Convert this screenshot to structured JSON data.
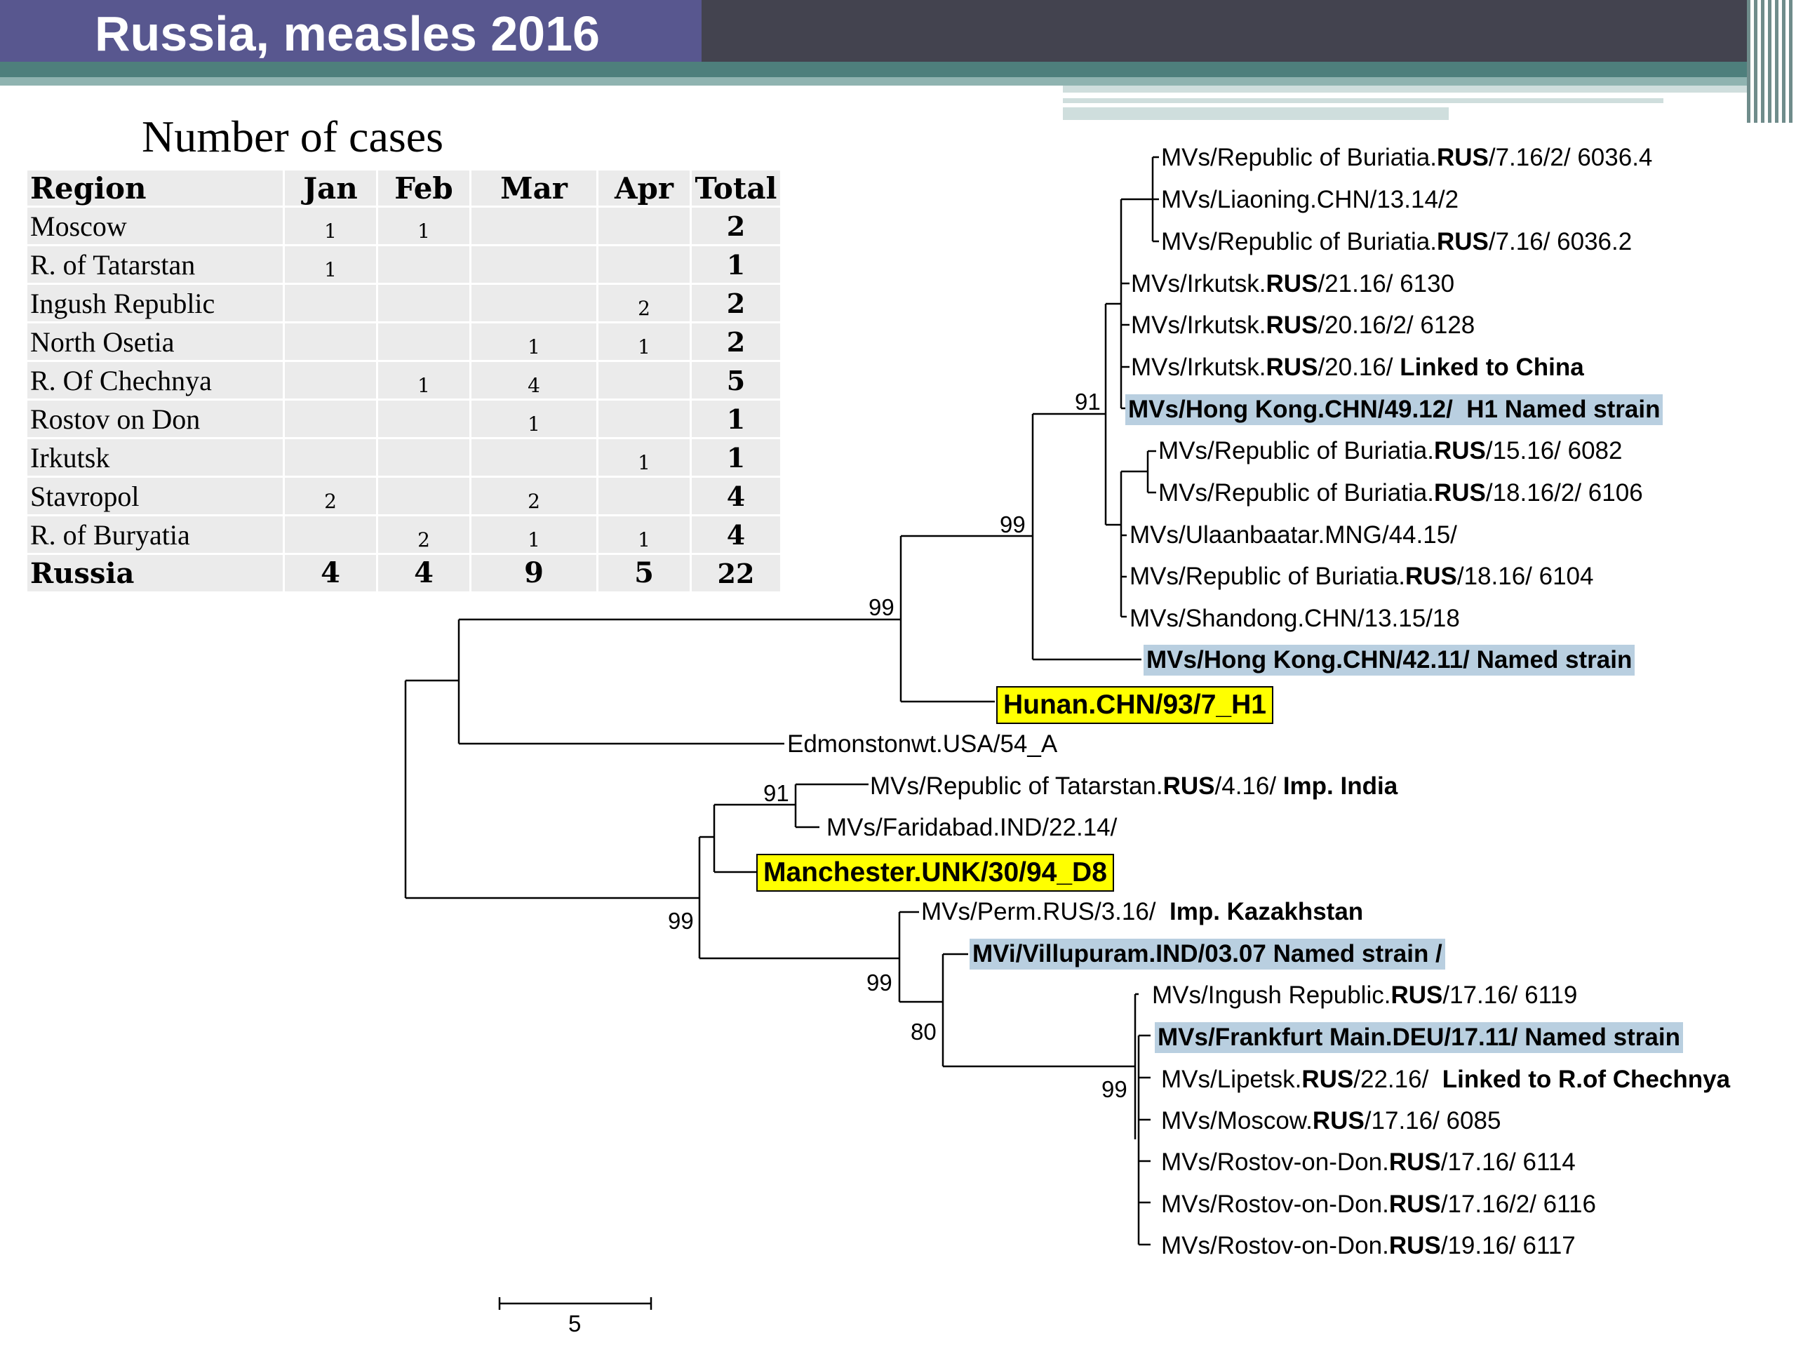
{
  "header": {
    "title": "Russia, measles 2016"
  },
  "cases": {
    "title": "Number of cases",
    "columns": [
      "Region",
      "Jan",
      "Feb",
      "Mar",
      "Apr",
      "Total"
    ],
    "rows": [
      [
        "Moscow",
        "1",
        "1",
        "",
        "",
        "2"
      ],
      [
        "R. of Tatarstan",
        "1",
        "",
        "",
        "",
        "1"
      ],
      [
        "Ingush Republic",
        "",
        "",
        "",
        "2",
        "2"
      ],
      [
        "North  Osetia",
        "",
        "",
        "1",
        "1",
        "2"
      ],
      [
        "R. Of Chechnya",
        "",
        "1",
        "4",
        "",
        "5"
      ],
      [
        "Rostov on Don",
        "",
        "",
        "1",
        "",
        "1"
      ],
      [
        "Irkutsk",
        "",
        "",
        "",
        "1",
        "1"
      ],
      [
        "Stavropol",
        "2",
        "",
        "2",
        "",
        "4"
      ],
      [
        "R. of  Buryatia",
        "",
        "2",
        "1",
        "1",
        "4"
      ]
    ],
    "summary": [
      "Russia",
      "4",
      "4",
      "9",
      "5",
      "22"
    ]
  },
  "tree": {
    "leaves": [
      {
        "id": "l1",
        "parts": [
          {
            "t": "MVs/Republic of Buriatia."
          },
          {
            "t": "RUS",
            "b": true
          },
          {
            "t": "/7.16/2/ 6036.4"
          }
        ]
      },
      {
        "id": "l2",
        "parts": [
          {
            "t": "MVs/Liaoning.CHN/13.14/2"
          }
        ]
      },
      {
        "id": "l3",
        "parts": [
          {
            "t": "MVs/Republic of Buriatia."
          },
          {
            "t": "RUS",
            "b": true
          },
          {
            "t": "/7.16/ 6036.2"
          }
        ]
      },
      {
        "id": "l4",
        "parts": [
          {
            "t": "MVs/Irkutsk."
          },
          {
            "t": "RUS",
            "b": true
          },
          {
            "t": "/21.16/ 6130"
          }
        ]
      },
      {
        "id": "l5",
        "parts": [
          {
            "t": "MVs/Irkutsk."
          },
          {
            "t": "RUS",
            "b": true
          },
          {
            "t": "/20.16/2/ 6128"
          }
        ]
      },
      {
        "id": "l6",
        "parts": [
          {
            "t": "MVs/Irkutsk."
          },
          {
            "t": "RUS",
            "b": true
          },
          {
            "t": "/20.16/ "
          },
          {
            "t": "Linked to China",
            "b": true
          }
        ]
      },
      {
        "id": "l7",
        "style": "named",
        "parts": [
          {
            "t": "MVs/Hong Kong.CHN/49.12/  H1 Named strain"
          }
        ]
      },
      {
        "id": "l8",
        "parts": [
          {
            "t": "MVs/Republic of Buriatia."
          },
          {
            "t": "RUS",
            "b": true
          },
          {
            "t": "/15.16/ 6082"
          }
        ]
      },
      {
        "id": "l9",
        "parts": [
          {
            "t": "MVs/Republic of Buriatia."
          },
          {
            "t": "RUS",
            "b": true
          },
          {
            "t": "/18.16/2/ 6106"
          }
        ]
      },
      {
        "id": "l10",
        "parts": [
          {
            "t": "MVs/Ulaanbaatar.MNG/44.15/"
          }
        ]
      },
      {
        "id": "l11",
        "parts": [
          {
            "t": "MVs/Republic of Buriatia."
          },
          {
            "t": "RUS",
            "b": true
          },
          {
            "t": "/18.16/ 6104"
          }
        ]
      },
      {
        "id": "l12",
        "parts": [
          {
            "t": "MVs/Shandong.CHN/13.15/18"
          }
        ]
      },
      {
        "id": "l13",
        "style": "named",
        "parts": [
          {
            "t": "MVs/Hong Kong.CHN/42.11/ Named strain"
          }
        ]
      },
      {
        "id": "l14",
        "style": "ref",
        "parts": [
          {
            "t": "Hunan.CHN/93/7_H1"
          }
        ]
      },
      {
        "id": "l15",
        "parts": [
          {
            "t": "Edmonstonwt.USA/54_A"
          }
        ]
      },
      {
        "id": "l16",
        "parts": [
          {
            "t": "MVs/Republic of Tatarstan."
          },
          {
            "t": "RUS",
            "b": true
          },
          {
            "t": "/4.16/ "
          },
          {
            "t": "Imp. India",
            "b": true
          }
        ]
      },
      {
        "id": "l17",
        "parts": [
          {
            "t": "MVs/Faridabad.IND/22.14/"
          }
        ]
      },
      {
        "id": "l18",
        "style": "ref",
        "parts": [
          {
            "t": "Manchester.UNK/30/94_D8"
          }
        ]
      },
      {
        "id": "l19",
        "parts": [
          {
            "t": "MVs/Perm.RUS/3.16/  "
          },
          {
            "t": "Imp. Kazakhstan",
            "b": true
          }
        ]
      },
      {
        "id": "l20",
        "style": "named",
        "parts": [
          {
            "t": "MVi/Villupuram.IND/03.07 Named strain /"
          }
        ]
      },
      {
        "id": "l21",
        "parts": [
          {
            "t": "MVs/Ingush Republic."
          },
          {
            "t": "RUS",
            "b": true
          },
          {
            "t": "/17.16/ 6119"
          }
        ]
      },
      {
        "id": "l22",
        "style": "named",
        "parts": [
          {
            "t": "MVs/Frankfurt Main.DEU/17.11/ Named strain"
          }
        ]
      },
      {
        "id": "l23",
        "parts": [
          {
            "t": "MVs/Lipetsk."
          },
          {
            "t": "RUS",
            "b": true
          },
          {
            "t": "/22.16/  "
          },
          {
            "t": "Linked to R.of Chechnya",
            "b": true
          }
        ]
      },
      {
        "id": "l24",
        "parts": [
          {
            "t": "MVs/Moscow."
          },
          {
            "t": "RUS",
            "b": true
          },
          {
            "t": "/17.16/ 6085"
          }
        ]
      },
      {
        "id": "l25",
        "parts": [
          {
            "t": "MVs/Rostov-on-Don."
          },
          {
            "t": "RUS",
            "b": true
          },
          {
            "t": "/17.16/ 6114"
          }
        ]
      },
      {
        "id": "l26",
        "parts": [
          {
            "t": "MVs/Rostov-on-Don."
          },
          {
            "t": "RUS",
            "b": true
          },
          {
            "t": "/17.16/2/ 6116"
          }
        ]
      },
      {
        "id": "l27",
        "parts": [
          {
            "t": "MVs/Rostov-on-Don."
          },
          {
            "t": "RUS",
            "b": true
          },
          {
            "t": "/19.16/ 6117"
          }
        ]
      }
    ],
    "bootstrap": [
      "91",
      "99",
      "99",
      "91",
      "99",
      "99",
      "80",
      "99"
    ],
    "scale_bar_label": "5"
  }
}
